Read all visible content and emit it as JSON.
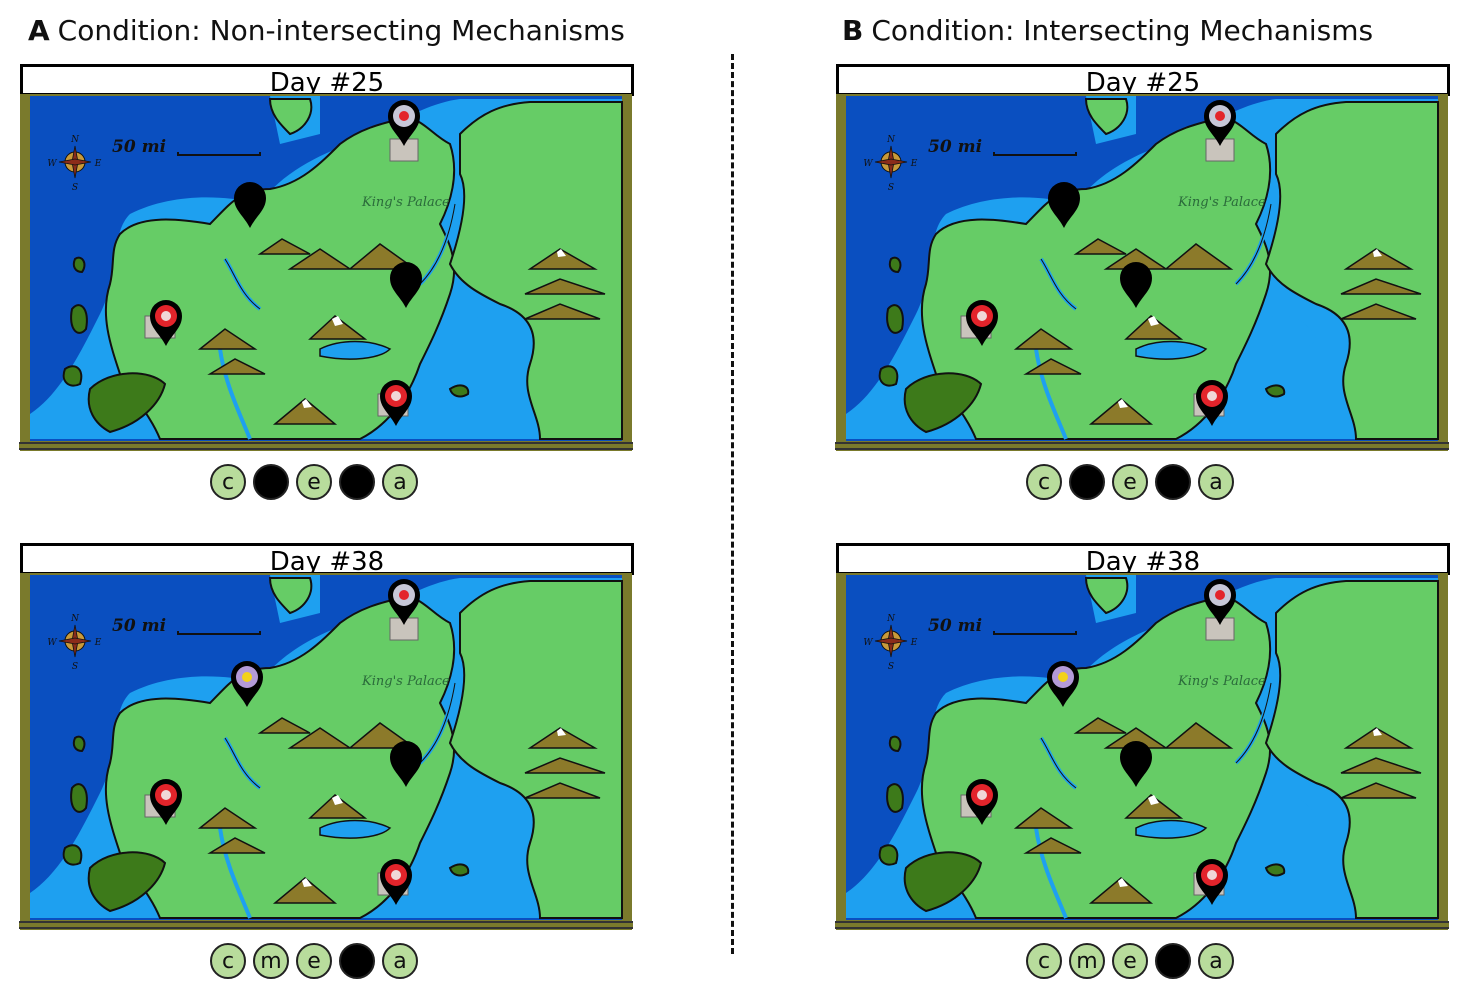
{
  "conditions": [
    {
      "letter": "A",
      "title": "Condition: Non-intersecting Mechanisms",
      "panels": [
        {
          "day": "Day #25",
          "sequence": [
            "c",
            "",
            "e",
            "",
            "a"
          ]
        },
        {
          "day": "Day #38",
          "sequence": [
            "c",
            "m",
            "e",
            "",
            "a"
          ]
        }
      ]
    },
    {
      "letter": "B",
      "title": "Condition: Intersecting Mechanisms",
      "panels": [
        {
          "day": "Day #25",
          "sequence": [
            "c",
            "",
            "e",
            "",
            "a"
          ]
        },
        {
          "day": "Day #38",
          "sequence": [
            "c",
            "m",
            "e",
            "",
            "a"
          ]
        }
      ]
    }
  ],
  "map": {
    "scale_label": "50 mi",
    "palace_label": "King's Palace",
    "compass": {
      "n": "N",
      "s": "S",
      "e": "E",
      "w": "W"
    }
  },
  "colors": {
    "ocean": "#0a4fc0",
    "shallows": "#1ea0f0",
    "land": "#66cc66",
    "island_dark": "#3d7a1a",
    "frame": "#7a7a2c",
    "token_fill": "#b8dc9c"
  }
}
